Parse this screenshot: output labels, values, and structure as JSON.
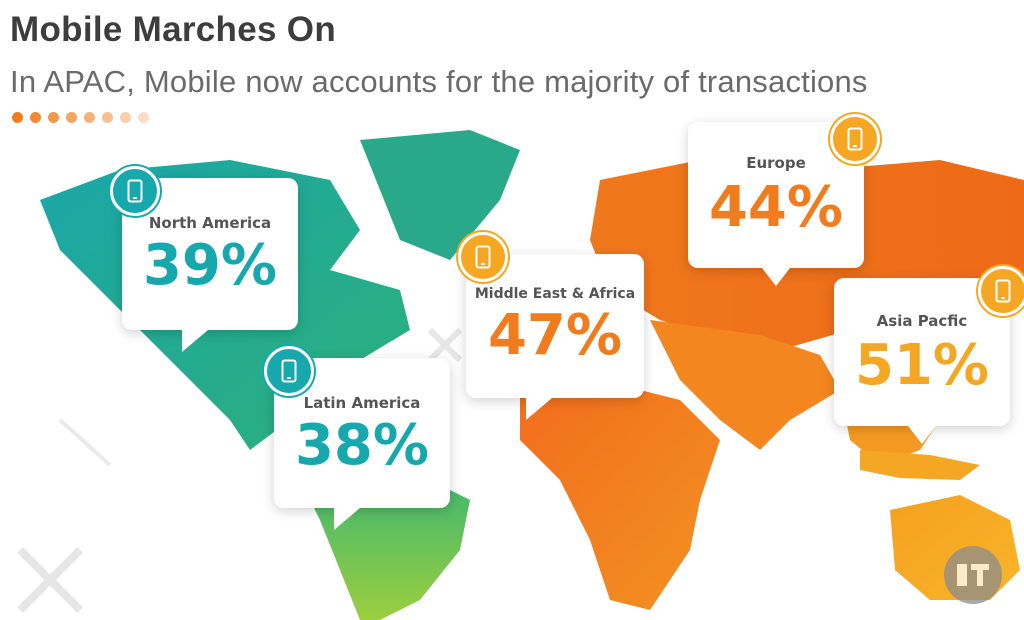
{
  "title": "Mobile Marches On",
  "subtitle": "In APAC, Mobile now accounts for the majority of transactions",
  "colors": {
    "teal": "#17a8ad",
    "orange": "#f07c1e",
    "amber": "#f5a623",
    "title": "#3d3d3d"
  },
  "regions": [
    {
      "name": "North America",
      "value": "39%"
    },
    {
      "name": "Latin America",
      "value": "38%"
    },
    {
      "name": "Middle East & Africa",
      "value": "47%"
    },
    {
      "name": "Europe",
      "value": "44%"
    },
    {
      "name": "Asia Pacfic",
      "value": "51%"
    }
  ],
  "icon": "mobile-phone-icon",
  "watermark_logo": "IT"
}
